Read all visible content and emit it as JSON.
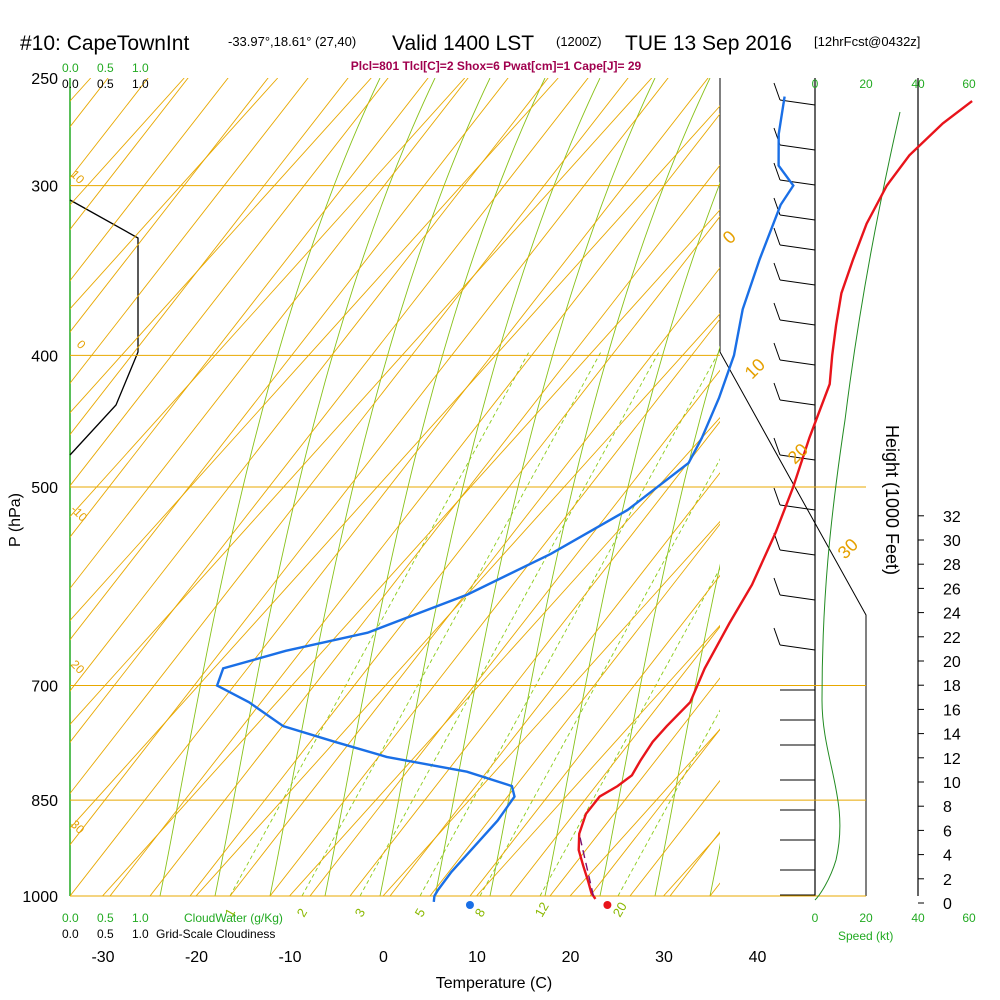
{
  "header": {
    "station": "#10: CapeTownInt",
    "coords": "-33.97°,18.61° (27,40)",
    "valid": "Valid 1400 LST",
    "zulu": "(1200Z)",
    "date": "TUE 13 Sep 2016",
    "forecast": "[12hrFcst@0432z]"
  },
  "indices": "Plcl=801 Tlcl[C]=2 Shox=6 Pwat[cm]=1 Cape[J]= 29",
  "colors": {
    "temperature": "#e8141b",
    "dewpoint": "#1a6fe6",
    "isotherm": "#e8a800",
    "dry_adiabat": "#e8a800",
    "moist_adiabat": "#88c21a",
    "mixing_ratio": "#8ccc1a",
    "cloud_water": "#22aa22",
    "wind_speed": "#228b22",
    "indices": "#a0004e"
  },
  "chart_data": {
    "type": "line",
    "title": "#10: CapeTownInt Valid 1400 LST (1200Z) TUE 13 Sep 2016",
    "xlabel": "Temperature (C)",
    "ylabel": "P (hPa)",
    "right_label": "Height (1000 Feet)",
    "x_ticks": [
      "-30",
      "-20",
      "-10",
      "0",
      "10",
      "20",
      "30",
      "40"
    ],
    "y_ticks": [
      "250",
      "300",
      "400",
      "500",
      "700",
      "850",
      "1000"
    ],
    "height_ticks": [
      "0",
      "2",
      "4",
      "6",
      "8",
      "10",
      "12",
      "14",
      "16",
      "18",
      "20",
      "22",
      "24",
      "26",
      "28",
      "30",
      "32"
    ],
    "xlim": [
      -35,
      35
    ],
    "ylim": [
      1000,
      250
    ],
    "series": [
      {
        "name": "Temperature",
        "points": [
          [
            23,
            1005
          ],
          [
            22,
            995
          ],
          [
            20.5,
            975
          ],
          [
            18.5,
            950
          ],
          [
            16.5,
            925
          ],
          [
            15,
            900
          ],
          [
            13.8,
            870
          ],
          [
            13.6,
            845
          ],
          [
            14.5,
            830
          ],
          [
            15,
            815
          ],
          [
            14.5,
            795
          ],
          [
            14,
            770
          ],
          [
            14,
            750
          ],
          [
            14.2,
            720
          ],
          [
            12.5,
            680
          ],
          [
            10.8,
            630
          ],
          [
            9.5,
            590
          ],
          [
            7,
            540
          ],
          [
            4.5,
            500
          ],
          [
            1.5,
            460
          ],
          [
            -1.5,
            420
          ],
          [
            -4,
            400
          ],
          [
            -6.5,
            380
          ],
          [
            -9,
            360
          ],
          [
            -11,
            340
          ],
          [
            -13,
            320
          ],
          [
            -14.5,
            300
          ],
          [
            -15,
            285
          ],
          [
            -14.5,
            270
          ],
          [
            -13.5,
            260
          ]
        ]
      },
      {
        "name": "Dewpoint",
        "points": [
          [
            6,
            1010
          ],
          [
            5.5,
            1000
          ],
          [
            5.3,
            990
          ],
          [
            5,
            960
          ],
          [
            5,
            920
          ],
          [
            5,
            880
          ],
          [
            4.5,
            845
          ],
          [
            3.2,
            830
          ],
          [
            -3,
            810
          ],
          [
            -13,
            790
          ],
          [
            -20,
            770
          ],
          [
            -27,
            750
          ],
          [
            -33,
            720
          ],
          [
            -38,
            700
          ],
          [
            -39,
            680
          ],
          [
            -34,
            660
          ],
          [
            -27,
            640
          ],
          [
            -20,
            600
          ],
          [
            -15,
            560
          ],
          [
            -11,
            520
          ],
          [
            -9,
            480
          ],
          [
            -10,
            460
          ],
          [
            -12,
            430
          ],
          [
            -14.5,
            400
          ],
          [
            -18,
            370
          ],
          [
            -21,
            340
          ],
          [
            -24,
            310
          ],
          [
            -24.5,
            300
          ],
          [
            -28,
            290
          ],
          [
            -31,
            275
          ],
          [
            -34,
            258
          ]
        ]
      },
      {
        "name": "Parcel",
        "points": [
          [
            22.5,
            1000
          ],
          [
            15,
            900
          ]
        ]
      }
    ],
    "surface_temperature": 24,
    "surface_dewpoint": 9.3,
    "isotherm_labels": [
      "-10",
      "0",
      "10",
      "20",
      "30",
      "0",
      "10",
      "20",
      "30"
    ],
    "mixing_ratio_labels": [
      "1",
      "2",
      "3",
      "5",
      "8",
      "12",
      "20"
    ],
    "cloud_scale": [
      "0.0",
      "0.5",
      "1.0"
    ],
    "cloud_water_label": "CloudWater (g/Kg)",
    "cloudiness_label": "Grid-Scale Cloudiness",
    "speed_label": "Speed (kt)",
    "speed_ticks": [
      "0",
      "20",
      "40",
      "60"
    ]
  }
}
